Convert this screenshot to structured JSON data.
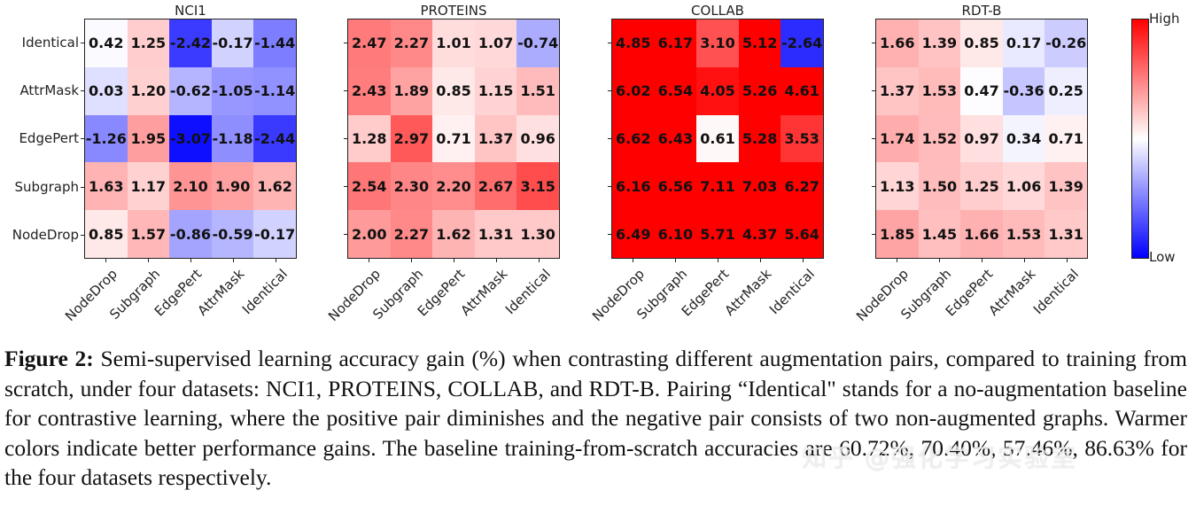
{
  "chart_data": {
    "type": "heatmap",
    "title": "Semi-supervised learning accuracy gain (%) for augmentation pairs",
    "row_labels": [
      "Identical",
      "AttrMask",
      "EdgePert",
      "Subgraph",
      "NodeDrop"
    ],
    "col_labels": [
      "NodeDrop",
      "Subgraph",
      "EdgePert",
      "AttrMask",
      "Identical"
    ],
    "colorbar": {
      "high_label": "High",
      "low_label": "Low",
      "colormap": "bwr"
    },
    "panels": [
      {
        "title": "NCI1",
        "values": [
          [
            "0.42",
            "1.25",
            "-2.42",
            "-0.17",
            "-1.44"
          ],
          [
            "0.03",
            "1.20",
            "-0.62",
            "-1.05",
            "-1.14"
          ],
          [
            "-1.26",
            "1.95",
            "-3.07",
            "-1.18",
            "-2.44"
          ],
          [
            "1.63",
            "1.17",
            "2.10",
            "1.90",
            "1.62"
          ],
          [
            "0.85",
            "1.57",
            "-0.86",
            "-0.59",
            "-0.17"
          ]
        ]
      },
      {
        "title": "PROTEINS",
        "values": [
          [
            "2.47",
            "2.27",
            "1.01",
            "1.07",
            "-0.74"
          ],
          [
            "2.43",
            "1.89",
            "0.85",
            "1.15",
            "1.51"
          ],
          [
            "1.28",
            "2.97",
            "0.71",
            "1.37",
            "0.96"
          ],
          [
            "2.54",
            "2.30",
            "2.20",
            "2.67",
            "3.15"
          ],
          [
            "2.00",
            "2.27",
            "1.62",
            "1.31",
            "1.30"
          ]
        ]
      },
      {
        "title": "COLLAB",
        "values": [
          [
            "4.85",
            "6.17",
            "3.10",
            "5.12",
            "-2.64"
          ],
          [
            "6.02",
            "6.54",
            "4.05",
            "5.26",
            "4.61"
          ],
          [
            "6.62",
            "6.43",
            "0.61",
            "5.28",
            "3.53"
          ],
          [
            "6.16",
            "6.56",
            "7.11",
            "7.03",
            "6.27"
          ],
          [
            "6.49",
            "6.10",
            "5.71",
            "4.37",
            "5.64"
          ]
        ]
      },
      {
        "title": "RDT-B",
        "values": [
          [
            "1.66",
            "1.39",
            "0.85",
            "0.17",
            "-0.26"
          ],
          [
            "1.37",
            "1.53",
            "0.47",
            "-0.36",
            "0.25"
          ],
          [
            "1.74",
            "1.52",
            "0.97",
            "0.34",
            "0.71"
          ],
          [
            "1.13",
            "1.50",
            "1.25",
            "1.06",
            "1.39"
          ],
          [
            "1.85",
            "1.45",
            "1.66",
            "1.53",
            "1.31"
          ]
        ]
      }
    ]
  },
  "caption": {
    "label": "Figure 2:",
    "text": " Semi-supervised learning accuracy gain (%) when contrasting different augmentation pairs, compared to training from scratch, under four datasets: NCI1, PROTEINS, COLLAB, and RDT-B. Pairing “Identical\" stands for a no-augmentation baseline for contrastive learning, where the positive pair diminishes and the negative pair consists of two non-augmented graphs. Warmer colors indicate better performance gains. The baseline training-from-scratch accuracies are 60.72%, 70.40%, 57.46%, 86.63% for the four datasets respectively."
  },
  "watermark": "知乎 @强化学习实验室"
}
